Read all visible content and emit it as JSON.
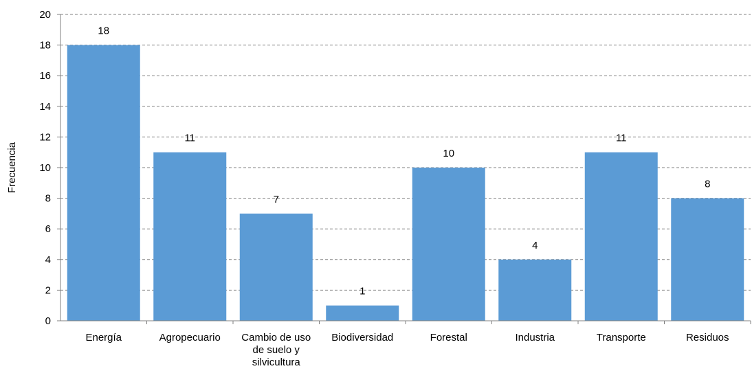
{
  "chart_data": {
    "type": "bar",
    "title": "",
    "xlabel": "",
    "ylabel": "Frecuencia",
    "categories": [
      [
        "Energía"
      ],
      [
        "Agropecuario"
      ],
      [
        "Cambio de uso",
        "de suelo y",
        "silvicultura"
      ],
      [
        "Biodiversidad"
      ],
      [
        "Forestal"
      ],
      [
        "Industria"
      ],
      [
        "Transporte"
      ],
      [
        "Residuos"
      ]
    ],
    "values": [
      18,
      11,
      7,
      1,
      10,
      4,
      11,
      8
    ],
    "ylim": [
      0,
      20
    ],
    "yticks": [
      0,
      2,
      4,
      6,
      8,
      10,
      12,
      14,
      16,
      18,
      20
    ],
    "grid": true,
    "legend": "none",
    "colors": {
      "bar": "#5b9bd5",
      "grid": "#808080",
      "axis": "#808080"
    }
  }
}
